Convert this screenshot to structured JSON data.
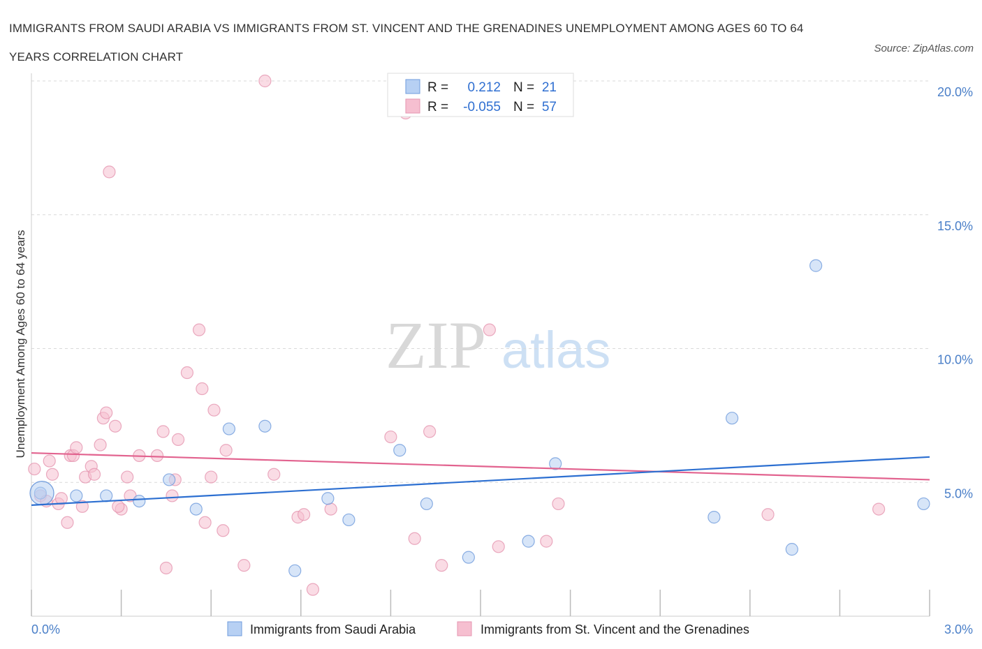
{
  "title": "IMMIGRANTS FROM SAUDI ARABIA VS IMMIGRANTS FROM ST. VINCENT AND THE GRENADINES UNEMPLOYMENT AMONG AGES 60 TO 64 YEARS CORRELATION CHART",
  "source": "Source: ZipAtlas.com",
  "watermark": {
    "zip": "ZIP",
    "atlas": "atlas"
  },
  "colors": {
    "blue": "#2c6fd1",
    "blue_fill": "#b7d0f3",
    "pink": "#e2638f",
    "pink_fill": "#f6bfd0",
    "tick_text": "#4a7fc8",
    "grid": "#d9d9d9"
  },
  "legend": {
    "rows": [
      {
        "r_label": "R =",
        "r_value": "0.212",
        "n_label": "N =",
        "n_value": "21"
      },
      {
        "r_label": "R =",
        "r_value": "-0.055",
        "n_label": "N =",
        "n_value": "57"
      }
    ]
  },
  "chart_data": {
    "type": "scatter",
    "title": "IMMIGRANTS FROM SAUDI ARABIA VS IMMIGRANTS FROM ST. VINCENT AND THE GRENADINES UNEMPLOYMENT AMONG AGES 60 TO 64 YEARS CORRELATION CHART",
    "xlabel": "",
    "ylabel": "Unemployment Among Ages 60 to 64 years",
    "xlim": [
      0,
      3.0
    ],
    "ylim": [
      0,
      20.0
    ],
    "x_tick_labels": [
      "0.0%",
      "3.0%"
    ],
    "y_tick_labels": [
      "5.0%",
      "10.0%",
      "15.0%",
      "20.0%"
    ],
    "y_ticks": [
      5,
      10,
      15,
      20
    ],
    "grid": "horizontal dashed",
    "legend_position": "top-center",
    "series": [
      {
        "name": "Immigrants from Saudi Arabia",
        "color": "blue",
        "R": 0.212,
        "N": 21,
        "trend": [
          [
            0,
            4.15
          ],
          [
            3.0,
            5.95
          ]
        ],
        "points": [
          [
            0.03,
            4.6
          ],
          [
            0.15,
            4.5
          ],
          [
            0.25,
            4.5
          ],
          [
            0.36,
            4.3
          ],
          [
            0.46,
            5.1
          ],
          [
            0.55,
            4.0
          ],
          [
            0.66,
            7.0
          ],
          [
            0.78,
            7.1
          ],
          [
            0.88,
            1.7
          ],
          [
            0.99,
            4.4
          ],
          [
            1.06,
            3.6
          ],
          [
            1.23,
            6.2
          ],
          [
            1.32,
            4.2
          ],
          [
            1.46,
            2.2
          ],
          [
            1.66,
            2.8
          ],
          [
            1.75,
            5.7
          ],
          [
            2.28,
            3.7
          ],
          [
            2.34,
            7.4
          ],
          [
            2.54,
            2.5
          ],
          [
            2.62,
            13.1
          ],
          [
            2.98,
            4.2
          ]
        ]
      },
      {
        "name": "Immigrants from St. Vincent and the Grenadines",
        "color": "pink",
        "R": -0.055,
        "N": 57,
        "trend": [
          [
            0,
            6.1
          ],
          [
            3.0,
            5.1
          ]
        ],
        "points": [
          [
            0.01,
            5.5
          ],
          [
            0.03,
            4.5
          ],
          [
            0.05,
            4.3
          ],
          [
            0.06,
            5.8
          ],
          [
            0.07,
            5.3
          ],
          [
            0.09,
            4.2
          ],
          [
            0.1,
            4.4
          ],
          [
            0.12,
            3.5
          ],
          [
            0.13,
            6.0
          ],
          [
            0.14,
            6.0
          ],
          [
            0.15,
            6.3
          ],
          [
            0.17,
            4.1
          ],
          [
            0.18,
            5.2
          ],
          [
            0.2,
            5.6
          ],
          [
            0.21,
            5.3
          ],
          [
            0.23,
            6.4
          ],
          [
            0.24,
            7.4
          ],
          [
            0.25,
            7.6
          ],
          [
            0.26,
            16.6
          ],
          [
            0.28,
            7.1
          ],
          [
            0.3,
            4.0
          ],
          [
            0.32,
            5.2
          ],
          [
            0.33,
            4.5
          ],
          [
            0.36,
            6.0
          ],
          [
            0.42,
            6.0
          ],
          [
            0.44,
            6.9
          ],
          [
            0.45,
            1.8
          ],
          [
            0.47,
            4.5
          ],
          [
            0.48,
            5.1
          ],
          [
            0.49,
            6.6
          ],
          [
            0.52,
            9.1
          ],
          [
            0.56,
            10.7
          ],
          [
            0.57,
            8.5
          ],
          [
            0.58,
            3.5
          ],
          [
            0.6,
            5.2
          ],
          [
            0.61,
            7.7
          ],
          [
            0.64,
            3.2
          ],
          [
            0.65,
            6.2
          ],
          [
            0.71,
            1.9
          ],
          [
            0.78,
            20.0
          ],
          [
            0.81,
            5.3
          ],
          [
            0.89,
            3.7
          ],
          [
            0.91,
            3.8
          ],
          [
            0.94,
            1.0
          ],
          [
            1.0,
            4.0
          ],
          [
            1.2,
            6.7
          ],
          [
            1.25,
            18.8
          ],
          [
            1.28,
            2.9
          ],
          [
            1.33,
            6.9
          ],
          [
            1.37,
            1.9
          ],
          [
            1.53,
            10.7
          ],
          [
            1.56,
            2.6
          ],
          [
            1.72,
            2.8
          ],
          [
            1.76,
            4.2
          ],
          [
            2.46,
            3.8
          ],
          [
            2.83,
            4.0
          ],
          [
            0.29,
            4.1
          ]
        ]
      }
    ]
  }
}
